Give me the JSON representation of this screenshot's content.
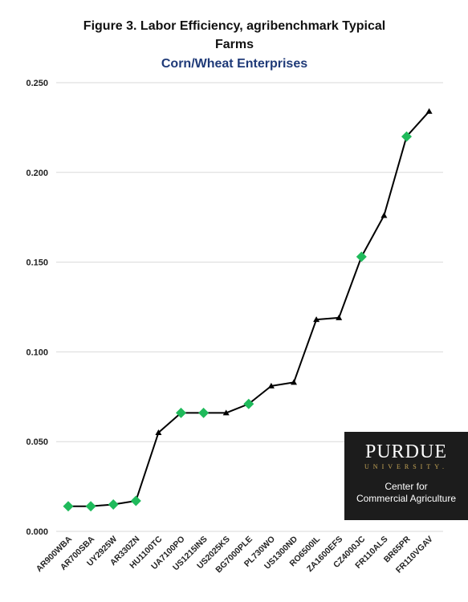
{
  "chart_data": {
    "type": "line",
    "title_line1": "Figure 3. Labor Efficiency, agribenchmark Typical",
    "title_line2": "Farms",
    "subtitle": "Corn/Wheat Enterprises",
    "ylim": [
      0,
      0.25
    ],
    "yticks": [
      "0.000",
      "0.050",
      "0.100",
      "0.150",
      "0.200",
      "0.250"
    ],
    "categories": [
      "AR900WBA",
      "AR700SBA",
      "UY2925W",
      "AR330ZN",
      "HU1100TC",
      "UA7100PO",
      "US1215INS",
      "US2025KS",
      "BG7000PLE",
      "PL730WO",
      "US1300ND",
      "RO6500IL",
      "ZA1600EFS",
      "CZ4000JC",
      "FR110ALS",
      "BR65PR",
      "FR110VGAV"
    ],
    "series": [
      {
        "values": [
          0.014,
          0.014,
          0.015,
          0.017,
          0.055,
          0.066,
          0.066,
          0.066,
          0.071,
          0.081,
          0.083,
          0.118,
          0.119,
          0.153,
          0.176,
          0.22,
          0.234
        ],
        "markers": [
          "diamond",
          "diamond",
          "diamond",
          "diamond",
          "triangle",
          "diamond",
          "diamond",
          "triangle",
          "diamond",
          "triangle",
          "triangle",
          "triangle",
          "triangle",
          "diamond",
          "triangle",
          "diamond",
          "triangle"
        ]
      }
    ],
    "colors": {
      "line": "#000000",
      "diamond": "#1fba5b",
      "triangle": "#000000",
      "subtitle": "#1f3a78",
      "grid": "#d9d9d9"
    },
    "grid": true,
    "legend": "none"
  },
  "logo": {
    "brand": "PURDUE",
    "brand_sub": "UNIVERSITY.",
    "center_line1": "Center for",
    "center_line2": "Commercial Agriculture"
  }
}
